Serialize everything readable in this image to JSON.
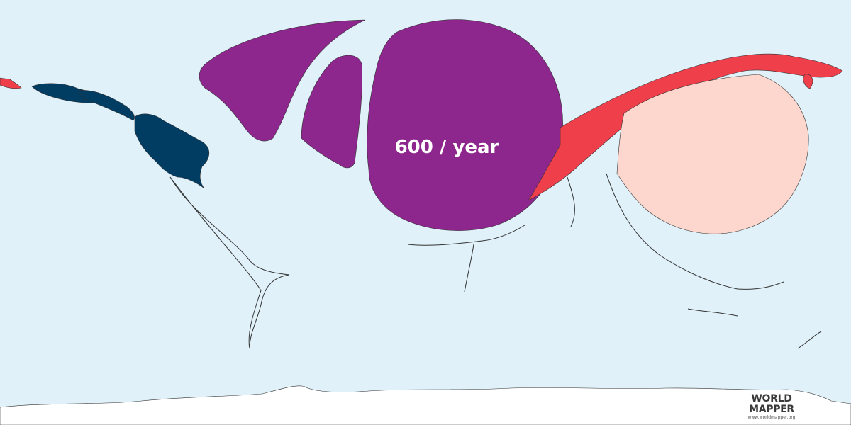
{
  "map": {
    "value_label": "600 / year",
    "colors": {
      "ocean": "#e0f1f9",
      "europe": "#8e278d",
      "north_america": "#013c63",
      "east_asia": "#ee3f4b",
      "south_asia": "#fdd6cd",
      "antarctica": "#ffffff",
      "label": "#ffffff"
    }
  },
  "logo": {
    "line1": "WORLD",
    "line2": "MAPPER",
    "url": "www.worldmapper.org"
  }
}
